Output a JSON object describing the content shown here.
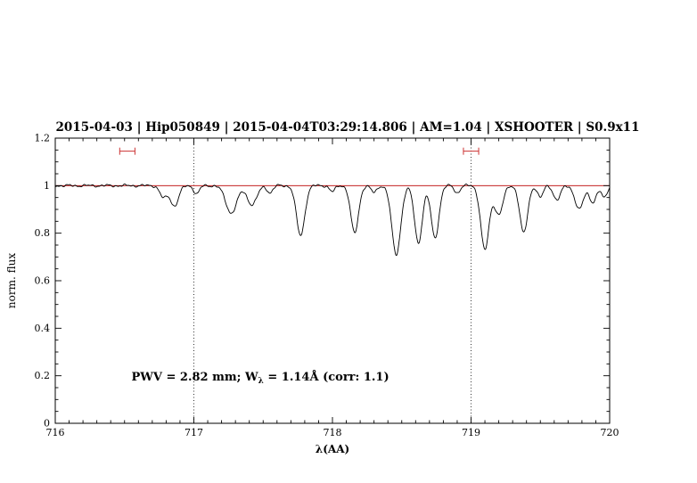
{
  "header": {
    "title": "2015-04-03 | Hip050849 | 2015-04-04T03:29:14.806 | AM=1.04 | XSHOOTER | S0.9x11",
    "title_color": "#0000e6"
  },
  "chart_data": {
    "type": "line",
    "title": "2015-04-03 | Hip050849 | 2015-04-04T03:29:14.806 | AM=1.04 | XSHOOTER | S0.9x11",
    "xlabel": "λ(AA)",
    "ylabel": "norm. flux",
    "xlim": [
      716,
      720
    ],
    "ylim": [
      0,
      1.2
    ],
    "grid": "off",
    "legend": "none",
    "x_ticks": {
      "values": [
        716,
        717,
        718,
        719,
        720
      ],
      "labels": [
        "716",
        "717",
        "718",
        "719",
        "720"
      ],
      "minor_step": 0.1
    },
    "y_ticks": {
      "values": [
        0,
        0.2,
        0.4,
        0.6,
        0.8,
        1,
        1.2
      ],
      "labels": [
        "0",
        "0.2",
        "0.4",
        "0.6",
        "0.8",
        "1",
        "1.2"
      ],
      "minor_step": 0.05
    },
    "continuum_line": {
      "y": 1.0,
      "color": "#bb0000"
    },
    "dotted_vlines": {
      "x": [
        717,
        719
      ],
      "color": "#000000",
      "style": "dotted"
    },
    "interval_markers": {
      "color": "#cc3333",
      "y": 1.145,
      "items": [
        {
          "x_center": 716.52,
          "half_width": 0.055
        },
        {
          "x_center": 719.0,
          "half_width": 0.055
        }
      ]
    },
    "annotation": {
      "prefix": "PWV = 2.82 mm; W",
      "subscript": "λ",
      "suffix": " = 1.14Å (corr: 1.1)",
      "x": 716.55,
      "y": 0.18,
      "color": "#0000e6"
    },
    "series": [
      {
        "name": "normalized telluric spectrum",
        "color": "#000000",
        "continuum_level": 1.0,
        "noise_amplitude": 0.004,
        "absorption_lines": [
          {
            "center": 716.78,
            "depth": 0.05,
            "sigma": 0.025
          },
          {
            "center": 716.86,
            "depth": 0.085,
            "sigma": 0.03
          },
          {
            "center": 717.02,
            "depth": 0.035,
            "sigma": 0.02
          },
          {
            "center": 717.27,
            "depth": 0.115,
            "sigma": 0.04
          },
          {
            "center": 717.42,
            "depth": 0.08,
            "sigma": 0.035
          },
          {
            "center": 717.55,
            "depth": 0.03,
            "sigma": 0.02
          },
          {
            "center": 717.77,
            "depth": 0.21,
            "sigma": 0.03
          },
          {
            "center": 718.0,
            "depth": 0.025,
            "sigma": 0.02
          },
          {
            "center": 718.16,
            "depth": 0.2,
            "sigma": 0.028
          },
          {
            "center": 718.3,
            "depth": 0.03,
            "sigma": 0.02
          },
          {
            "center": 718.46,
            "depth": 0.29,
            "sigma": 0.032
          },
          {
            "center": 718.62,
            "depth": 0.24,
            "sigma": 0.028
          },
          {
            "center": 718.74,
            "depth": 0.22,
            "sigma": 0.028
          },
          {
            "center": 718.9,
            "depth": 0.03,
            "sigma": 0.02
          },
          {
            "center": 719.1,
            "depth": 0.27,
            "sigma": 0.03
          },
          {
            "center": 719.2,
            "depth": 0.12,
            "sigma": 0.03
          },
          {
            "center": 719.38,
            "depth": 0.2,
            "sigma": 0.028
          },
          {
            "center": 719.5,
            "depth": 0.05,
            "sigma": 0.02
          },
          {
            "center": 719.62,
            "depth": 0.06,
            "sigma": 0.025
          },
          {
            "center": 719.78,
            "depth": 0.1,
            "sigma": 0.03
          },
          {
            "center": 719.88,
            "depth": 0.07,
            "sigma": 0.025
          },
          {
            "center": 719.96,
            "depth": 0.05,
            "sigma": 0.02
          }
        ]
      }
    ]
  }
}
